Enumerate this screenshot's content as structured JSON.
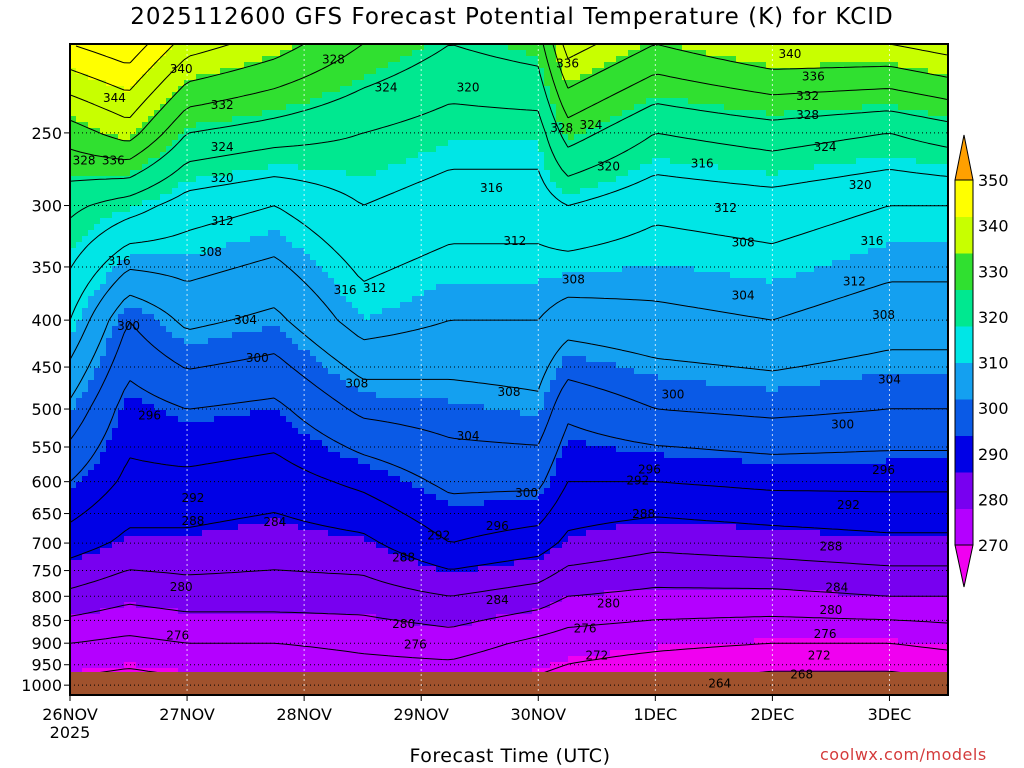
{
  "chart_data": {
    "type": "heatmap",
    "title": "2025112600 GFS Forecast Potential Temperature (K) for KCID",
    "xlabel": "Forecast Time (UTC)",
    "ylabel": "",
    "x_ticks": [
      {
        "label": "26NOV",
        "sub": "2025",
        "day": 0
      },
      {
        "label": "27NOV",
        "sub": "",
        "day": 1
      },
      {
        "label": "28NOV",
        "sub": "",
        "day": 2
      },
      {
        "label": "29NOV",
        "sub": "",
        "day": 3
      },
      {
        "label": "30NOV",
        "sub": "",
        "day": 4
      },
      {
        "label": "1DEC",
        "sub": "",
        "day": 5
      },
      {
        "label": "2DEC",
        "sub": "",
        "day": 6
      },
      {
        "label": "3DEC",
        "sub": "",
        "day": 7
      }
    ],
    "xlim_days": [
      0,
      7.5
    ],
    "y_ticks_hpa": [
      250,
      300,
      350,
      400,
      450,
      500,
      550,
      600,
      650,
      700,
      750,
      800,
      850,
      900,
      950,
      1000
    ],
    "ylim_hpa": [
      200,
      1025
    ],
    "colorbar": {
      "levels": [
        270,
        280,
        290,
        300,
        310,
        320,
        330,
        340,
        350
      ],
      "colors": [
        "#f000f0",
        "#b400ff",
        "#7800f0",
        "#0000e6",
        "#0a5ae6",
        "#14a0f0",
        "#00e6e6",
        "#00e890",
        "#30e030",
        "#c8ff00",
        "#ffff00",
        "#ffa000"
      ]
    },
    "profiles": [
      {
        "day": 0.0,
        "hpa": [
          1000,
          900,
          800,
          700,
          600,
          500,
          400,
          300,
          250,
          200
        ],
        "theta": [
          271,
          276,
          283,
          290,
          296,
          303,
          312,
          321,
          330,
          344
        ]
      },
      {
        "day": 0.5,
        "hpa": [
          1000,
          900,
          800,
          700,
          600,
          500,
          400,
          300,
          250,
          200
        ],
        "theta": [
          270,
          275,
          281,
          287,
          291,
          294,
          300,
          318,
          334,
          347
        ]
      },
      {
        "day": 1.0,
        "hpa": [
          1000,
          900,
          800,
          700,
          600,
          500,
          400,
          300,
          250,
          200
        ],
        "theta": [
          271,
          276,
          282,
          287,
          291,
          296,
          305,
          314,
          324,
          338
        ]
      },
      {
        "day": 1.75,
        "hpa": [
          1000,
          900,
          800,
          700,
          600,
          500,
          400,
          300,
          250,
          200
        ],
        "theta": [
          271,
          276,
          282,
          286,
          290,
          295,
          303,
          312,
          322,
          334
        ]
      },
      {
        "day": 2.5,
        "hpa": [
          1000,
          900,
          800,
          700,
          600,
          500,
          400,
          300,
          250,
          200
        ],
        "theta": [
          273,
          277,
          282,
          287,
          293,
          301,
          310,
          316,
          320,
          328
        ]
      },
      {
        "day": 3.25,
        "hpa": [
          1000,
          900,
          800,
          700,
          600,
          500,
          400,
          300,
          250,
          200
        ],
        "theta": [
          273,
          278,
          284,
          292,
          297,
          302,
          308,
          314,
          318,
          324
        ]
      },
      {
        "day": 4.0,
        "hpa": [
          1000,
          900,
          800,
          700,
          600,
          500,
          400,
          300,
          250,
          200
        ],
        "theta": [
          271,
          275,
          282,
          290,
          297,
          303,
          308,
          314,
          318,
          326
        ]
      },
      {
        "day": 4.25,
        "hpa": [
          1000,
          900,
          800,
          700,
          600,
          500,
          400,
          300,
          250,
          200
        ],
        "theta": [
          270,
          274,
          280,
          287,
          292,
          297,
          306,
          316,
          326,
          338
        ]
      },
      {
        "day": 5.0,
        "hpa": [
          1000,
          900,
          800,
          700,
          600,
          500,
          400,
          300,
          250,
          200
        ],
        "theta": [
          268,
          273,
          279,
          285,
          292,
          300,
          307,
          313,
          320,
          332
        ]
      },
      {
        "day": 6.0,
        "hpa": [
          1000,
          900,
          800,
          700,
          600,
          500,
          400,
          300,
          250,
          200
        ],
        "theta": [
          266,
          272,
          279,
          286,
          293,
          301,
          308,
          314,
          322,
          336
        ]
      },
      {
        "day": 7.0,
        "hpa": [
          1000,
          900,
          800,
          700,
          600,
          500,
          400,
          300,
          250,
          200
        ],
        "theta": [
          266,
          272,
          280,
          287,
          293,
          300,
          306,
          312,
          320,
          336
        ]
      },
      {
        "day": 7.5,
        "hpa": [
          1000,
          900,
          800,
          700,
          600,
          500,
          400,
          300,
          250,
          200
        ],
        "theta": [
          267,
          273,
          280,
          287,
          293,
          300,
          306,
          312,
          322,
          338
        ]
      }
    ],
    "contour_labels": [
      {
        "text": "340",
        "day": 0.95,
        "hpa": 213
      },
      {
        "text": "344",
        "day": 0.38,
        "hpa": 229
      },
      {
        "text": "332",
        "day": 1.3,
        "hpa": 233
      },
      {
        "text": "328",
        "day": 0.12,
        "hpa": 268
      },
      {
        "text": "336",
        "day": 0.37,
        "hpa": 268
      },
      {
        "text": "324",
        "day": 1.3,
        "hpa": 259
      },
      {
        "text": "320",
        "day": 1.3,
        "hpa": 280
      },
      {
        "text": "312",
        "day": 1.3,
        "hpa": 312
      },
      {
        "text": "308",
        "day": 1.2,
        "hpa": 337
      },
      {
        "text": "316",
        "day": 0.42,
        "hpa": 345
      },
      {
        "text": "304",
        "day": 1.5,
        "hpa": 400
      },
      {
        "text": "300",
        "day": 0.5,
        "hpa": 406
      },
      {
        "text": "300",
        "day": 1.6,
        "hpa": 440
      },
      {
        "text": "296",
        "day": 0.68,
        "hpa": 508
      },
      {
        "text": "328",
        "day": 2.25,
        "hpa": 208
      },
      {
        "text": "324",
        "day": 2.7,
        "hpa": 223
      },
      {
        "text": "320",
        "day": 3.4,
        "hpa": 223
      },
      {
        "text": "316",
        "day": 3.6,
        "hpa": 287
      },
      {
        "text": "312",
        "day": 3.8,
        "hpa": 328
      },
      {
        "text": "316",
        "day": 2.35,
        "hpa": 371
      },
      {
        "text": "312",
        "day": 2.6,
        "hpa": 369
      },
      {
        "text": "308",
        "day": 2.45,
        "hpa": 469
      },
      {
        "text": "304",
        "day": 3.4,
        "hpa": 535
      },
      {
        "text": "308",
        "day": 3.75,
        "hpa": 479
      },
      {
        "text": "300",
        "day": 3.9,
        "hpa": 617
      },
      {
        "text": "296",
        "day": 3.65,
        "hpa": 671
      },
      {
        "text": "292",
        "day": 3.15,
        "hpa": 687
      },
      {
        "text": "288",
        "day": 2.85,
        "hpa": 726
      },
      {
        "text": "284",
        "day": 1.75,
        "hpa": 664
      },
      {
        "text": "292",
        "day": 1.05,
        "hpa": 625
      },
      {
        "text": "288",
        "day": 1.05,
        "hpa": 662
      },
      {
        "text": "284",
        "day": 3.65,
        "hpa": 808
      },
      {
        "text": "280",
        "day": 0.95,
        "hpa": 782
      },
      {
        "text": "280",
        "day": 2.85,
        "hpa": 858
      },
      {
        "text": "276",
        "day": 0.92,
        "hpa": 883
      },
      {
        "text": "276",
        "day": 2.95,
        "hpa": 903
      },
      {
        "text": "336",
        "day": 4.25,
        "hpa": 210
      },
      {
        "text": "328",
        "day": 4.2,
        "hpa": 247
      },
      {
        "text": "324",
        "day": 4.45,
        "hpa": 245
      },
      {
        "text": "320",
        "day": 4.6,
        "hpa": 272
      },
      {
        "text": "308",
        "day": 4.3,
        "hpa": 361
      },
      {
        "text": "300",
        "day": 5.15,
        "hpa": 482
      },
      {
        "text": "296",
        "day": 4.95,
        "hpa": 582
      },
      {
        "text": "292",
        "day": 4.85,
        "hpa": 598
      },
      {
        "text": "288",
        "day": 4.9,
        "hpa": 651
      },
      {
        "text": "280",
        "day": 4.6,
        "hpa": 815
      },
      {
        "text": "276",
        "day": 4.4,
        "hpa": 867
      },
      {
        "text": "272",
        "day": 4.5,
        "hpa": 928
      },
      {
        "text": "316",
        "day": 5.4,
        "hpa": 270
      },
      {
        "text": "312",
        "day": 5.6,
        "hpa": 302
      },
      {
        "text": "308",
        "day": 5.75,
        "hpa": 329
      },
      {
        "text": "304",
        "day": 5.75,
        "hpa": 376
      },
      {
        "text": "264",
        "day": 5.55,
        "hpa": 996
      },
      {
        "text": "340",
        "day": 6.15,
        "hpa": 205
      },
      {
        "text": "336",
        "day": 6.35,
        "hpa": 217
      },
      {
        "text": "332",
        "day": 6.3,
        "hpa": 228
      },
      {
        "text": "328",
        "day": 6.3,
        "hpa": 239
      },
      {
        "text": "324",
        "day": 6.45,
        "hpa": 259
      },
      {
        "text": "320",
        "day": 6.75,
        "hpa": 285
      },
      {
        "text": "316",
        "day": 6.85,
        "hpa": 328
      },
      {
        "text": "312",
        "day": 6.7,
        "hpa": 363
      },
      {
        "text": "308",
        "day": 6.95,
        "hpa": 395
      },
      {
        "text": "304",
        "day": 7.0,
        "hpa": 464
      },
      {
        "text": "300",
        "day": 6.6,
        "hpa": 520
      },
      {
        "text": "296",
        "day": 6.95,
        "hpa": 583
      },
      {
        "text": "292",
        "day": 6.65,
        "hpa": 636
      },
      {
        "text": "288",
        "day": 6.5,
        "hpa": 706
      },
      {
        "text": "284",
        "day": 6.55,
        "hpa": 783
      },
      {
        "text": "280",
        "day": 6.5,
        "hpa": 828
      },
      {
        "text": "276",
        "day": 6.45,
        "hpa": 880
      },
      {
        "text": "272",
        "day": 6.4,
        "hpa": 928
      },
      {
        "text": "268",
        "day": 6.25,
        "hpa": 973
      }
    ]
  },
  "credit": "coolwx.com/models"
}
